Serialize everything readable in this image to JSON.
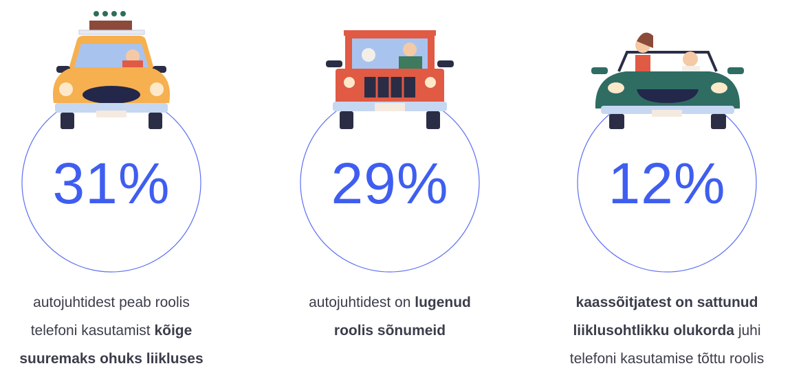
{
  "items": [
    {
      "stat": "31%",
      "lines": [
        [
          {
            "text": "autojuhtidest peab roolis"
          }
        ],
        [
          {
            "text": "telefoni kasutamist "
          },
          {
            "text": "kõige",
            "bold": true
          }
        ],
        [
          {
            "text": "suuremaks ohuks liikluses",
            "bold": true
          }
        ]
      ]
    },
    {
      "stat": "29%",
      "lines": [
        [
          {
            "text": "autojuhtidest on "
          },
          {
            "text": "lugenud",
            "bold": true
          }
        ],
        [
          {
            "text": "roolis sõnumeid",
            "bold": true
          }
        ]
      ]
    },
    {
      "stat": "12%",
      "lines": [
        [
          {
            "text": "kaassõitjatest on sattunud",
            "bold": true
          }
        ],
        [
          {
            "text": "liiklusohtlikku olukorda",
            "bold": true
          },
          {
            "text": " juhi"
          }
        ],
        [
          {
            "text": "telefoni kasutamise tõttu roolis"
          }
        ]
      ]
    }
  ]
}
